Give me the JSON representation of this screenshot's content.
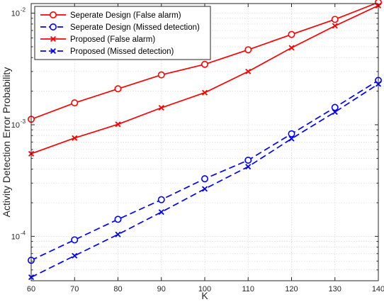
{
  "chart_data": {
    "type": "line",
    "xlabel": "K",
    "ylabel": "Activity Detection Error Probability",
    "x": [
      60,
      70,
      80,
      90,
      100,
      110,
      120,
      130,
      140
    ],
    "xlim": [
      60,
      140
    ],
    "ylim": [
      4e-05,
      0.0122
    ],
    "yscale": "log",
    "grid": true,
    "legend_position": "top-left",
    "x_ticks": [
      "60",
      "70",
      "80",
      "90",
      "100",
      "110",
      "120",
      "130",
      "140"
    ],
    "y_ticks": [
      {
        "base": "10",
        "exp": "-4",
        "value": 0.0001
      },
      {
        "base": "10",
        "exp": "-3",
        "value": 0.001
      },
      {
        "base": "10",
        "exp": "-2",
        "value": 0.01
      }
    ],
    "series": [
      {
        "name": "Seperate Design (False alarm)",
        "color": "#ff0000",
        "dash": "solid",
        "marker": "circle",
        "values": [
          0.00112,
          0.00157,
          0.0021,
          0.0028,
          0.00348,
          0.0047,
          0.00645,
          0.0088,
          0.0125
        ]
      },
      {
        "name": "Seperate Design (Missed detection)",
        "color": "#0000ff",
        "dash": "dashed",
        "marker": "circle",
        "values": [
          6.1e-05,
          9.3e-05,
          0.000142,
          0.000213,
          0.000328,
          0.000481,
          0.00083,
          0.00143,
          0.0025
        ]
      },
      {
        "name": "Proposed (False alarm)",
        "color": "#ff0000",
        "dash": "solid",
        "marker": "x",
        "values": [
          0.00055,
          0.00076,
          0.00101,
          0.00142,
          0.00194,
          0.003,
          0.0049,
          0.0077,
          0.0117
        ]
      },
      {
        "name": "Proposed (Missed detection)",
        "color": "#0000ff",
        "dash": "dashed",
        "marker": "x",
        "values": [
          4.3e-05,
          6.7e-05,
          0.000104,
          0.000165,
          0.000266,
          0.000421,
          0.00075,
          0.0013,
          0.00232
        ]
      }
    ]
  }
}
